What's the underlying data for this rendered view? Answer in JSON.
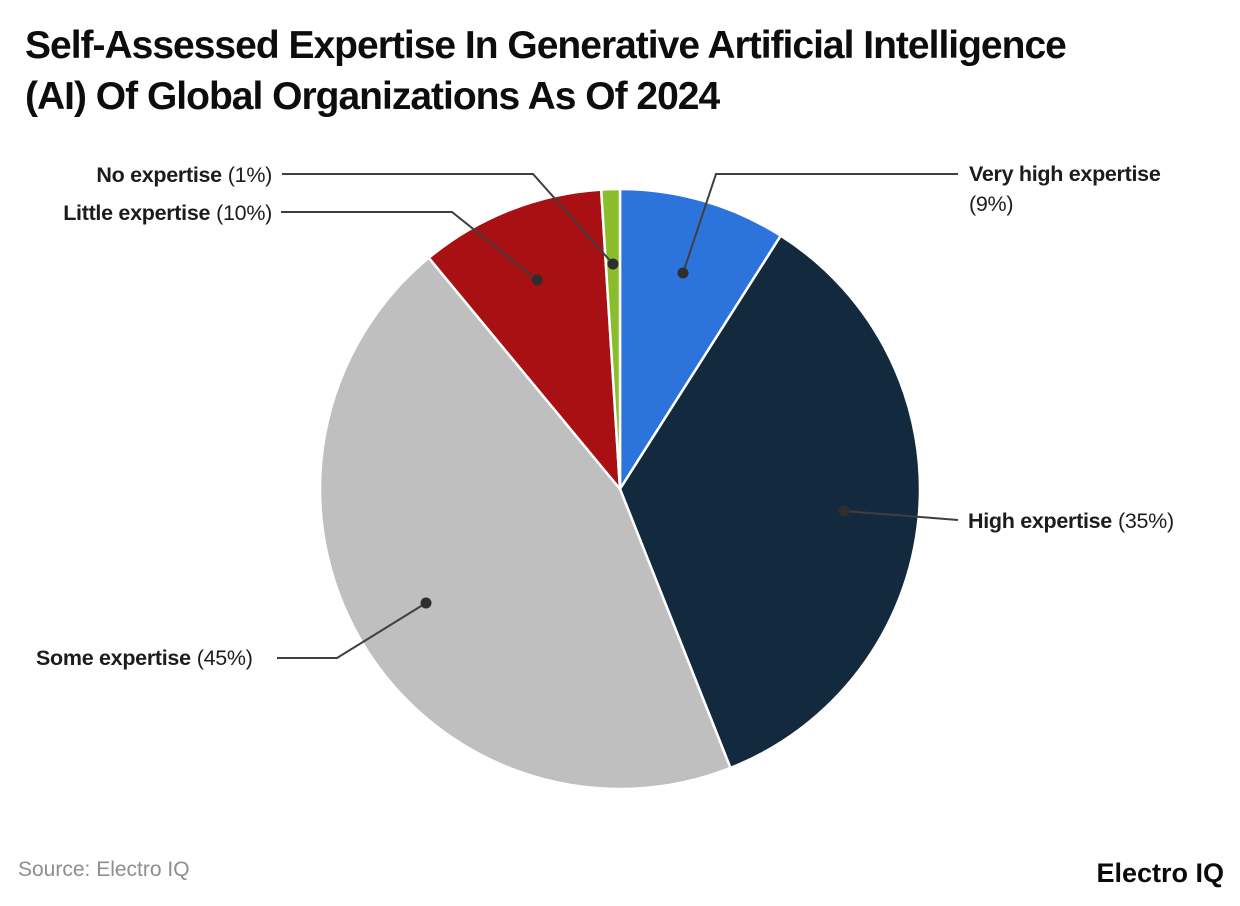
{
  "title": {
    "line1": "Self-Assessed Expertise In Generative Artificial Intelligence",
    "line2": "(AI) Of Global Organizations As Of 2024"
  },
  "annotations": [
    {
      "name": "No expertise",
      "pct": "(1%)"
    },
    {
      "name": "Little expertise",
      "pct": "(10%)"
    },
    {
      "name": "Very high expertise",
      "pct": "(9%)"
    },
    {
      "name": "High expertise",
      "pct": "(35%)"
    },
    {
      "name": "Some expertise",
      "pct": "(45%)"
    }
  ],
  "source": {
    "label": "Source: Electro IQ"
  },
  "brand": {
    "logo_text": "Electro IQ"
  },
  "colors": {
    "very_high": "#2C74DB",
    "high": "#13293D",
    "some": "#BFBFBF",
    "little": "#A81013",
    "no": "#8ABD2C",
    "leader_line": "#3F3F3F",
    "leader_dot": "#2E2E2E"
  },
  "chart_data": {
    "type": "pie",
    "title": "Self-Assessed Expertise In Generative Artificial Intelligence (AI) Of Global Organizations As Of 2024",
    "unit": "%",
    "start_angle_deg": 0,
    "direction": "clockwise",
    "legend_position": "callout-labels",
    "slices": [
      {
        "label": "Very high expertise",
        "value": 9,
        "color": "#2C74DB"
      },
      {
        "label": "High expertise",
        "value": 35,
        "color": "#13293D"
      },
      {
        "label": "Some expertise",
        "value": 45,
        "color": "#BFBFBF"
      },
      {
        "label": "Little expertise",
        "value": 10,
        "color": "#A81013"
      },
      {
        "label": "No expertise",
        "value": 1,
        "color": "#8ABD2C"
      }
    ]
  }
}
